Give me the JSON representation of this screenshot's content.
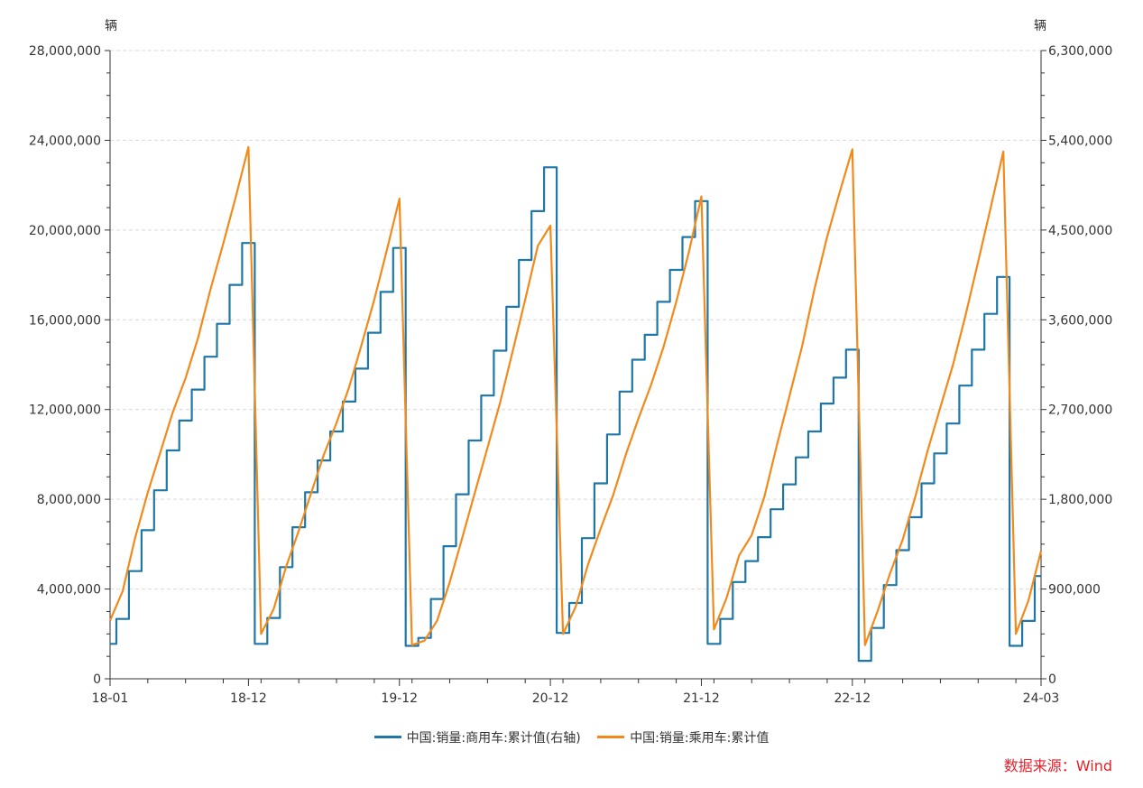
{
  "chart_data": {
    "type": "line",
    "left_unit": "辆",
    "right_unit": "辆",
    "x_tick_labels": [
      "18-01",
      "18-12",
      "19-12",
      "20-12",
      "21-12",
      "22-12",
      "24-03"
    ],
    "x_tick_months": [
      0,
      11,
      23,
      35,
      47,
      59,
      74
    ],
    "left_axis": {
      "min": 0,
      "max": 28000000,
      "ticks": [
        0,
        4000000,
        8000000,
        12000000,
        16000000,
        20000000,
        24000000,
        28000000
      ],
      "tick_labels": [
        "0",
        "4,000,000",
        "8,000,000",
        "12,000,000",
        "16,000,000",
        "20,000,000",
        "24,000,000",
        "28,000,000"
      ]
    },
    "right_axis": {
      "min": 0,
      "max": 6300000,
      "ticks": [
        0,
        900000,
        1800000,
        2700000,
        3600000,
        4500000,
        5400000,
        6300000
      ],
      "tick_labels": [
        "0",
        "900,000",
        "1,800,000",
        "2,700,000",
        "3,600,000",
        "4,500,000",
        "5,400,000",
        "6,300,000"
      ]
    },
    "grid": true,
    "legend_position": "bottom",
    "series": [
      {
        "name": "中国:销量:商用车:累计值(右轴)",
        "axis": "right",
        "color": "#1f77a8",
        "step": true,
        "values": [
          350000,
          600000,
          1080000,
          1490000,
          1890000,
          2290000,
          2590000,
          2900000,
          3230000,
          3560000,
          3950000,
          4370000,
          350000,
          610000,
          1120000,
          1520000,
          1870000,
          2190000,
          2480000,
          2780000,
          3110000,
          3470000,
          3880000,
          4320000,
          330000,
          410000,
          800000,
          1330000,
          1850000,
          2390000,
          2840000,
          3290000,
          3730000,
          4200000,
          4690000,
          5130000,
          460000,
          760000,
          1410000,
          1960000,
          2450000,
          2880000,
          3200000,
          3450000,
          3780000,
          4100000,
          4430000,
          4790000,
          350000,
          600000,
          970000,
          1180000,
          1420000,
          1700000,
          1950000,
          2220000,
          2480000,
          2760000,
          3020000,
          3300000,
          180000,
          510000,
          940000,
          1290000,
          1620000,
          1960000,
          2260000,
          2560000,
          2940000,
          3300000,
          3660000,
          4030000,
          330000,
          580000,
          1030000
        ]
      },
      {
        "name": "中国:销量:乘用车:累计值",
        "axis": "left",
        "color": "#f28a1b",
        "step": false,
        "values": [
          2600000,
          3900000,
          6300000,
          8300000,
          10100000,
          11900000,
          13400000,
          15200000,
          17400000,
          19400000,
          21500000,
          23700000,
          2000000,
          3100000,
          5000000,
          6600000,
          8300000,
          10000000,
          11400000,
          13000000,
          14900000,
          16900000,
          19100000,
          21400000,
          1500000,
          1700000,
          2600000,
          4300000,
          6300000,
          8300000,
          10300000,
          12300000,
          14600000,
          16900000,
          19300000,
          20200000,
          2000000,
          3200000,
          5100000,
          6700000,
          8200000,
          10000000,
          11600000,
          13100000,
          14800000,
          16800000,
          19000000,
          21500000,
          2200000,
          3600000,
          5500000,
          6400000,
          8100000,
          10400000,
          12600000,
          14800000,
          17400000,
          19700000,
          21700000,
          23600000,
          1500000,
          3000000,
          4700000,
          6200000,
          8100000,
          10200000,
          12100000,
          14000000,
          16200000,
          18600000,
          21000000,
          23500000,
          2000000,
          3500000,
          5700000
        ]
      }
    ]
  },
  "source_text": "数据来源：Wind"
}
